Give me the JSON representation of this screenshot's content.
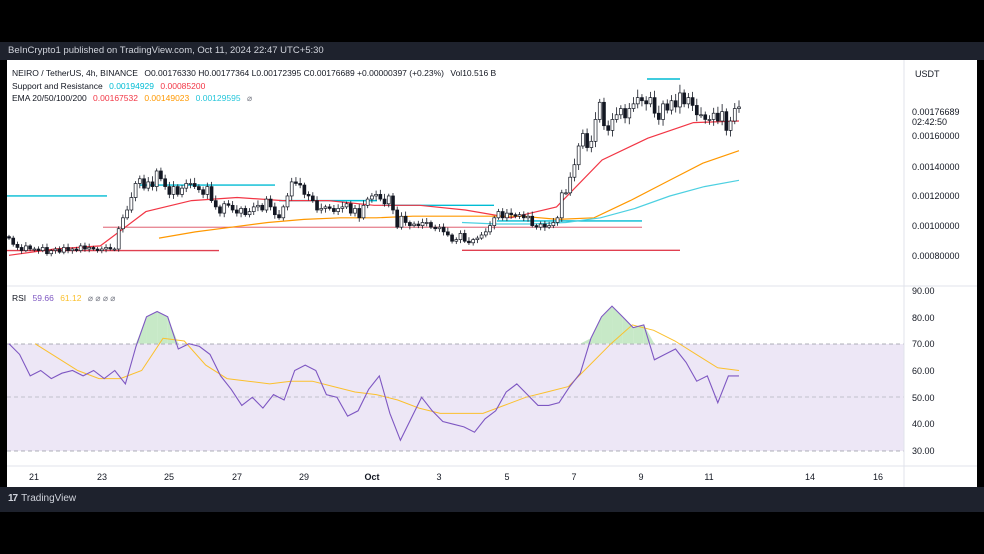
{
  "header": {
    "published": "BeInCrypto1 published on TradingView.com, Oct 11, 2024 22:47 UTC+5:30"
  },
  "footer": {
    "brand": "TradingView",
    "logo_mark": "17"
  },
  "legend": {
    "symbol": "NEIRO / TetherUS, 4h, BINANCE",
    "ohlc": "O0.00176330 H0.00177364 L0.00172395 C0.00176689 +0.00000397 (+0.23%)",
    "volume": "Vol10.516 B",
    "sr_label": "Support and Resistance",
    "sr_value1": "0.00194929",
    "sr_value2": "0.00085200",
    "ema_label": "EMA 20/50/100/200",
    "ema_v1": "0.00167532",
    "ema_v2": "0.00149023",
    "ema_v3": "0.00129595",
    "ema_eye": "⌀"
  },
  "rsi_legend": {
    "label": "RSI",
    "v1": "59.66",
    "v2": "61.12",
    "icons": "⌀ ⌀ ⌀ ⌀"
  },
  "axis": {
    "currency": "USDT",
    "last_price": "0.00176689",
    "countdown": "02:42:50",
    "price_ticks": [
      "0.00160000",
      "0.00140000",
      "0.00120000",
      "0.00100000",
      "0.00080000"
    ],
    "rsi_ticks": [
      "90.00",
      "80.00",
      "70.00",
      "60.00",
      "50.00",
      "40.00",
      "30.00"
    ],
    "x_ticks": [
      "21",
      "23",
      "25",
      "27",
      "29",
      "Oct",
      "3",
      "5",
      "7",
      "9",
      "11",
      "14",
      "16"
    ]
  },
  "colors": {
    "up": "#131722",
    "down": "#131722",
    "ema20": "#f23645",
    "ema50": "#ff9800",
    "ema100": "#4dd0e1",
    "resistance": "#00bcd4",
    "support": "#e04050",
    "rsi": "#7e57c2",
    "rsi_ma": "#fbc02d",
    "rsi_band": "#ede7f6"
  },
  "chart_data": {
    "type": "candlestick",
    "symbol": "NEIRO / TetherUS",
    "timeframe": "4h",
    "y_range": [
      0.0007,
      0.00193
    ],
    "x_labels": [
      "21",
      "23",
      "25",
      "27",
      "29",
      "Oct",
      "3",
      "5",
      "7",
      "9",
      "11",
      "14",
      "16"
    ],
    "close_series": [
      0.00093,
      0.00089,
      0.00087,
      0.00085,
      0.00088,
      0.00086,
      0.00086,
      0.00085,
      0.00087,
      0.00083,
      0.00085,
      0.00086,
      0.00084,
      0.00087,
      0.00085,
      0.00086,
      0.00085,
      0.00088,
      0.00086,
      0.00087,
      0.00086,
      0.00085,
      0.00086,
      0.00087,
      0.00086,
      0.00086,
      0.00099,
      0.00106,
      0.00111,
      0.00119,
      0.00128,
      0.00131,
      0.00125,
      0.00129,
      0.00126,
      0.00136,
      0.00131,
      0.00126,
      0.00121,
      0.00126,
      0.00121,
      0.00125,
      0.00128,
      0.00128,
      0.00126,
      0.00124,
      0.00121,
      0.00126,
      0.00117,
      0.00113,
      0.00109,
      0.00115,
      0.00114,
      0.00111,
      0.00109,
      0.00112,
      0.00108,
      0.0011,
      0.00113,
      0.00114,
      0.00111,
      0.00118,
      0.00113,
      0.00108,
      0.00106,
      0.00113,
      0.0012,
      0.00129,
      0.00128,
      0.00127,
      0.00121,
      0.0012,
      0.00117,
      0.00111,
      0.00112,
      0.00113,
      0.00112,
      0.0011,
      0.00112,
      0.00113,
      0.00115,
      0.00109,
      0.00112,
      0.00106,
      0.00114,
      0.00118,
      0.0012,
      0.00121,
      0.00118,
      0.00115,
      0.0012,
      0.00111,
      0.001,
      0.00107,
      0.00103,
      0.00101,
      0.00102,
      0.00101,
      0.00103,
      0.00103,
      0.001,
      0.00099,
      0.001,
      0.00097,
      0.00095,
      0.00091,
      0.00092,
      0.00096,
      0.00091,
      0.0009,
      0.00092,
      0.00093,
      0.00095,
      0.00097,
      0.00101,
      0.00106,
      0.0011,
      0.00106,
      0.00109,
      0.00108,
      0.00107,
      0.00108,
      0.00106,
      0.00107,
      0.00101,
      0.001,
      0.00102,
      0.001,
      0.00101,
      0.00103,
      0.00106,
      0.00122,
      0.00122,
      0.00132,
      0.0014,
      0.00152,
      0.0016,
      0.00151,
      0.00155,
      0.00169,
      0.0018,
      0.00165,
      0.00162,
      0.00169,
      0.00172,
      0.00176,
      0.0017,
      0.00176,
      0.00179,
      0.00183,
      0.00181,
      0.00179,
      0.00183,
      0.00173,
      0.00169,
      0.00179,
      0.00175,
      0.00181,
      0.00177,
      0.00186,
      0.00179,
      0.00183,
      0.00178,
      0.00172,
      0.00172,
      0.00169,
      0.00169,
      0.00173,
      0.00168,
      0.00174,
      0.00162,
      0.00168,
      0.00176,
      0.00177
    ],
    "series": [
      {
        "name": "EMA 20",
        "values": [
          0.00082,
          0.00086,
          0.00088,
          0.0011,
          0.00117,
          0.00119,
          0.00117,
          0.00117,
          0.00114,
          0.00114,
          0.00111,
          0.00106,
          0.00113,
          0.00143,
          0.00157,
          0.00167,
          0.00168
        ]
      },
      {
        "name": "EMA 50",
        "values": [
          0.00093,
          0.00097,
          0.001,
          0.00103,
          0.00105,
          0.00106,
          0.00106,
          0.00107,
          0.00107,
          0.00107,
          0.00107,
          0.00105,
          0.00106,
          0.00117,
          0.00129,
          0.00141,
          0.00149
        ]
      },
      {
        "name": "EMA 100",
        "values": [
          0.00103,
          0.00102,
          0.00102,
          0.00103,
          0.00106,
          0.00112,
          0.0012,
          0.00126,
          0.0013
        ]
      }
    ],
    "levels": [
      {
        "name": "resistance",
        "value": 0.0012,
        "from": "20",
        "to": "22.8"
      },
      {
        "name": "resistance",
        "value": 0.00127,
        "from": "23.5",
        "to": "26.6"
      },
      {
        "name": "resistance",
        "value": 0.00117,
        "from": "28.2",
        "to": "30.2"
      },
      {
        "name": "resistance",
        "value": 0.00114,
        "from": "Oct 1.3",
        "to": "Oct 4.7"
      },
      {
        "name": "resistance",
        "value": 0.00104,
        "from": "Oct 4.6",
        "to": "Oct 8"
      },
      {
        "name": "resistance",
        "value": 0.00194929,
        "from": "Oct 9.1",
        "to": "Oct 10.2"
      },
      {
        "name": "support",
        "value": 0.00085,
        "from": "20",
        "to": "26.5"
      },
      {
        "name": "support",
        "value": 0.000852,
        "from": "Oct 4",
        "to": "Oct 10.3"
      },
      {
        "name": "level",
        "value": 0.001,
        "from": "23",
        "to": "Oct 8"
      }
    ],
    "rsi": {
      "range": [
        30,
        90
      ],
      "upper": 70,
      "mid": 50,
      "lower": 30,
      "values": [
        70,
        66,
        58,
        60,
        57,
        59,
        60,
        58,
        60,
        57,
        60,
        55,
        69,
        80,
        82,
        80,
        68,
        70,
        69,
        66,
        58,
        53,
        47,
        50,
        46,
        51,
        49,
        60,
        62,
        60,
        51,
        50,
        43,
        45,
        53,
        58,
        44,
        34,
        42,
        50,
        45,
        41,
        40,
        39,
        37,
        42,
        45,
        52,
        55,
        51,
        47,
        47,
        48,
        54,
        59,
        72,
        80,
        84,
        80,
        76,
        77,
        64,
        66,
        68,
        63,
        56,
        58,
        48,
        58,
        58
      ],
      "ma_values": [
        70,
        65,
        60,
        57,
        57,
        60,
        72,
        71,
        62,
        57,
        56,
        55,
        56,
        56,
        54,
        52,
        51,
        49,
        46,
        44,
        44,
        44,
        47,
        50,
        52,
        54,
        62,
        70,
        77,
        75,
        71,
        66,
        61,
        60
      ]
    }
  }
}
